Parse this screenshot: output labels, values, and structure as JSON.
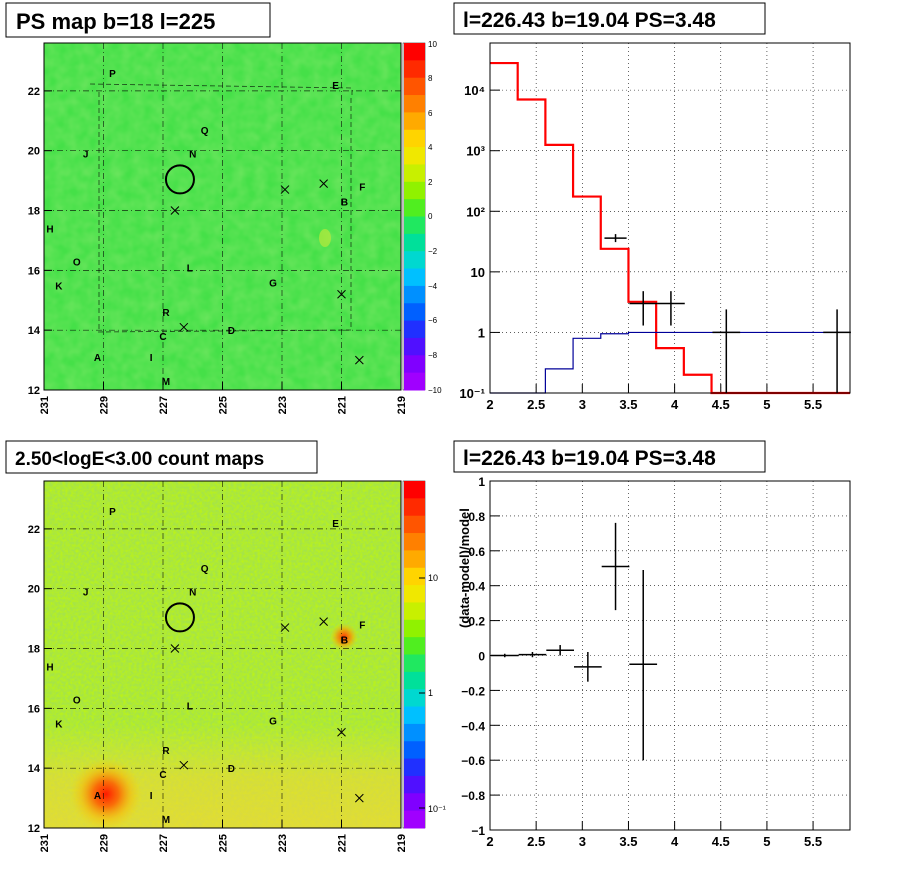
{
  "panels": {
    "ps_map": {
      "title": "PS map b=18 l=225",
      "xticks": [
        "231",
        "229",
        "227",
        "225",
        "223",
        "221",
        "219"
      ],
      "yticks": [
        "12",
        "14",
        "16",
        "18",
        "20",
        "22"
      ],
      "colorbar_ticks": [
        "10",
        "8",
        "6",
        "4",
        "2",
        "0",
        "−2",
        "−4",
        "−6",
        "−8",
        "−10"
      ],
      "source_labels": [
        "P",
        "E",
        "Q",
        "N",
        "J",
        "F",
        "B",
        "H",
        "O",
        "L",
        "G",
        "K",
        "R",
        "C",
        "D",
        "A",
        "I",
        "M"
      ]
    },
    "count_map": {
      "title": "2.50<logE<3.00 count maps",
      "xticks": [
        "231",
        "229",
        "227",
        "225",
        "223",
        "221",
        "219"
      ],
      "yticks": [
        "12",
        "14",
        "16",
        "18",
        "20",
        "22"
      ],
      "colorbar_ticks": [
        "10",
        "1",
        "10⁻¹"
      ],
      "source_labels": [
        "P",
        "E",
        "Q",
        "N",
        "J",
        "F",
        "B",
        "H",
        "O",
        "L",
        "G",
        "K",
        "R",
        "C",
        "D",
        "A",
        "I",
        "M"
      ]
    },
    "spectrum": {
      "title": "l=226.43 b=19.04 PS=3.48",
      "xticks": [
        "2",
        "2.5",
        "3",
        "3.5",
        "4",
        "4.5",
        "5",
        "5.5"
      ],
      "yticks": [
        "10⁻¹",
        "1",
        "10",
        "10²",
        "10³",
        "10⁴"
      ]
    },
    "residual": {
      "title": "l=226.43 b=19.04 PS=3.48",
      "ylabel": "(data-model)/model",
      "xticks": [
        "2",
        "2.5",
        "3",
        "3.5",
        "4",
        "4.5",
        "5",
        "5.5"
      ],
      "yticks": [
        "1",
        "0.8",
        "0.6",
        "0.4",
        "0.2",
        "0",
        "−0.2",
        "−0.4",
        "−0.6",
        "−0.8",
        "−1"
      ]
    }
  },
  "chart_data": [
    {
      "type": "heatmap",
      "title": "PS map b=18 l=225",
      "xlim": [
        231,
        219
      ],
      "ylim": [
        12,
        23.6
      ],
      "zlim": [
        -10,
        10
      ],
      "circle_center": [
        226.43,
        19.04
      ],
      "sources": [
        {
          "name": "P",
          "l": 228.7,
          "b": 22.6
        },
        {
          "name": "E",
          "l": 221.2,
          "b": 22.2
        },
        {
          "name": "Q",
          "l": 225.6,
          "b": 20.7
        },
        {
          "name": "N",
          "l": 226.0,
          "b": 19.9
        },
        {
          "name": "J",
          "l": 229.6,
          "b": 19.9
        },
        {
          "name": "F",
          "l": 220.3,
          "b": 18.8
        },
        {
          "name": "B",
          "l": 220.9,
          "b": 18.3
        },
        {
          "name": "H",
          "l": 230.8,
          "b": 17.4
        },
        {
          "name": "O",
          "l": 229.9,
          "b": 16.3
        },
        {
          "name": "L",
          "l": 226.1,
          "b": 16.1
        },
        {
          "name": "G",
          "l": 223.3,
          "b": 15.6
        },
        {
          "name": "K",
          "l": 230.5,
          "b": 15.5
        },
        {
          "name": "R",
          "l": 226.9,
          "b": 14.6
        },
        {
          "name": "C",
          "l": 227.0,
          "b": 13.8
        },
        {
          "name": "D",
          "l": 224.7,
          "b": 14.0
        },
        {
          "name": "A",
          "l": 229.2,
          "b": 13.1
        },
        {
          "name": "I",
          "l": 227.4,
          "b": 13.1
        },
        {
          "name": "M",
          "l": 226.9,
          "b": 12.3
        }
      ],
      "crosses": [
        {
          "l": 226.6,
          "b": 18.0
        },
        {
          "l": 222.9,
          "b": 18.7
        },
        {
          "l": 221.6,
          "b": 18.9
        },
        {
          "l": 221.0,
          "b": 15.2
        },
        {
          "l": 226.3,
          "b": 14.1
        },
        {
          "l": 220.4,
          "b": 13.0
        }
      ]
    },
    {
      "type": "heatmap",
      "title": "2.50<logE<3.00 count maps",
      "xlim": [
        231,
        219
      ],
      "ylim": [
        12,
        23.6
      ],
      "z_scale": "log",
      "hotspots": [
        {
          "name": "A",
          "l": 229.1,
          "b": 13.1
        },
        {
          "name": "B",
          "l": 220.9,
          "b": 18.4
        }
      ]
    },
    {
      "type": "line",
      "title": "l=226.43 b=19.04 PS=3.48",
      "xlim": [
        2.0,
        5.9
      ],
      "ylim": [
        0.1,
        60000
      ],
      "y_scale": "log",
      "grid": true,
      "series": [
        {
          "color": "#ff0000",
          "x": [
            2.0,
            2.3,
            2.6,
            2.9,
            3.2,
            3.5,
            3.8,
            4.1,
            4.4,
            5.9
          ],
          "values": [
            28000,
            7000,
            1250,
            175,
            24,
            3.2,
            0.55,
            0.2,
            0.1,
            0.1
          ]
        },
        {
          "color": "#000099",
          "x": [
            2.0,
            2.3,
            2.6,
            2.9,
            3.2,
            3.5,
            3.8,
            4.1,
            4.4,
            5.9
          ],
          "values": [
            0.1,
            0.1,
            0.25,
            0.8,
            0.95,
            1.0,
            1.0,
            1.0,
            1.0,
            1.0
          ]
        }
      ],
      "data_points": [
        {
          "x": 3.36,
          "y": 36,
          "xerr": 0.12,
          "ylo": 31,
          "yhi": 42
        },
        {
          "x": 3.66,
          "y": 3.0,
          "xerr": 0.15,
          "ylo": 1.3,
          "yhi": 4.8
        },
        {
          "x": 3.96,
          "y": 3.0,
          "xerr": 0.15,
          "ylo": 1.3,
          "yhi": 4.8
        },
        {
          "x": 4.56,
          "y": 1.0,
          "xerr": 0.15,
          "ylo": 0.1,
          "yhi": 2.4
        },
        {
          "x": 5.76,
          "y": 1.0,
          "xerr": 0.15,
          "ylo": 0.1,
          "yhi": 2.4
        }
      ]
    },
    {
      "type": "scatter",
      "title": "l=226.43 b=19.04 PS=3.48",
      "ylabel": "(data-model)/model",
      "xlim": [
        2.0,
        5.9
      ],
      "ylim": [
        -1,
        1
      ],
      "grid": true,
      "points": [
        {
          "x": 2.16,
          "y": 0.0,
          "xerr": 0.15,
          "ylo": -0.01,
          "yhi": 0.01
        },
        {
          "x": 2.46,
          "y": 0.005,
          "xerr": 0.15,
          "ylo": -0.01,
          "yhi": 0.02
        },
        {
          "x": 2.76,
          "y": 0.03,
          "xerr": 0.15,
          "ylo": 0.0,
          "yhi": 0.06
        },
        {
          "x": 3.06,
          "y": -0.065,
          "xerr": 0.15,
          "ylo": -0.15,
          "yhi": 0.02
        },
        {
          "x": 3.36,
          "y": 0.51,
          "xerr": 0.15,
          "ylo": 0.26,
          "yhi": 0.76
        },
        {
          "x": 3.66,
          "y": -0.05,
          "xerr": 0.15,
          "ylo": -0.6,
          "yhi": 0.49
        }
      ]
    }
  ]
}
